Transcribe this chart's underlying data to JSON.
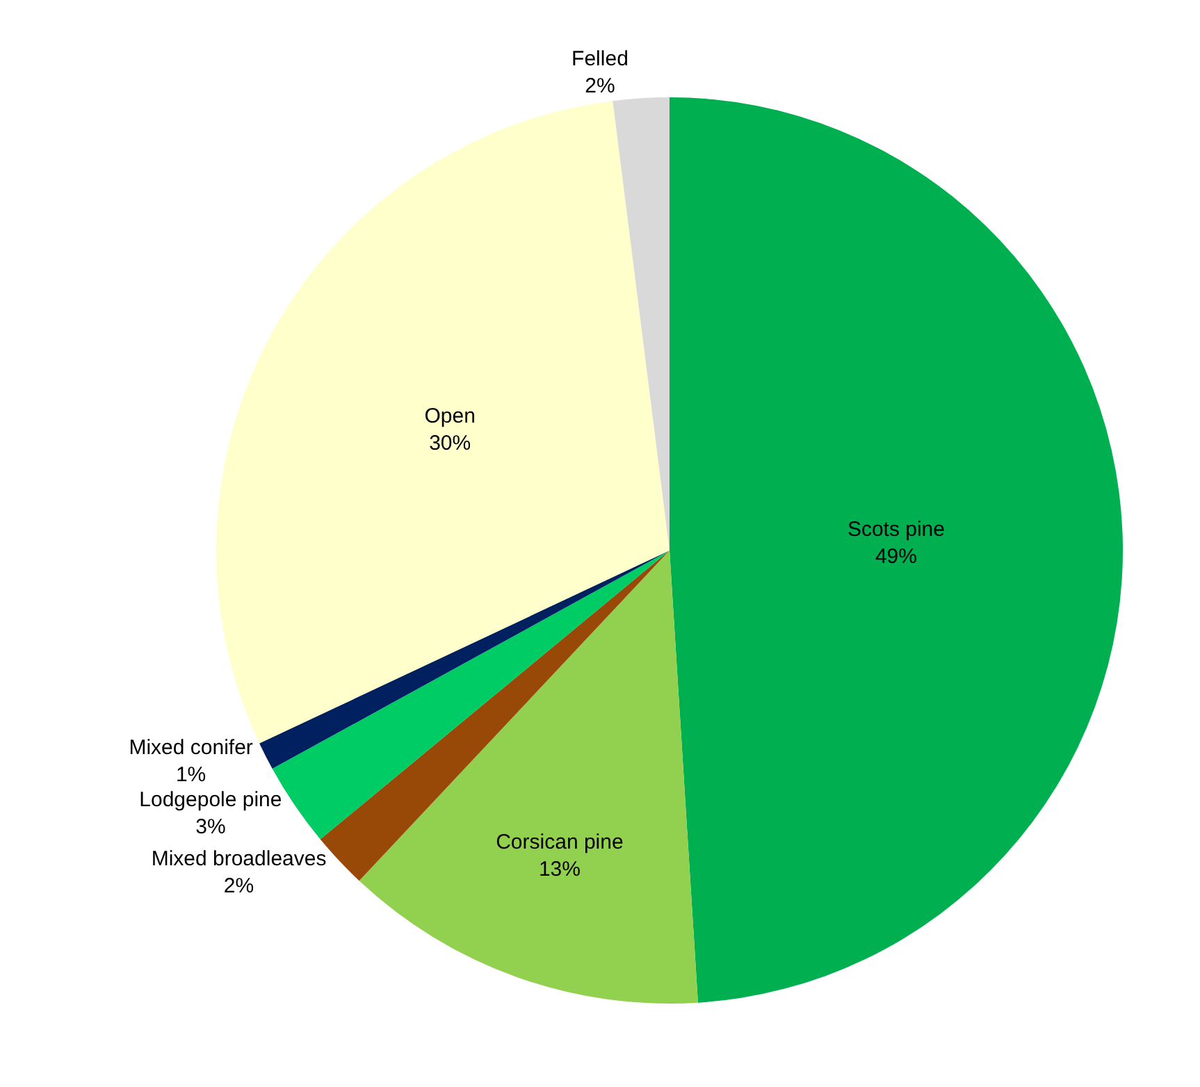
{
  "chart_data": {
    "type": "pie",
    "categories": [
      "Scots pine",
      "Corsican pine",
      "Mixed broadleaves",
      "Lodgepole pine",
      "Mixed conifer",
      "Open",
      "Felled"
    ],
    "values": [
      49,
      13,
      2,
      3,
      1,
      30,
      2
    ],
    "value_labels": [
      "49%",
      "13%",
      "2%",
      "3%",
      "1%",
      "30%",
      "2%"
    ],
    "colors": [
      "#00b050",
      "#92d050",
      "#984807",
      "#00cc66",
      "#002060",
      "#ffffcc",
      "#d9d9d9"
    ],
    "legend": false
  }
}
